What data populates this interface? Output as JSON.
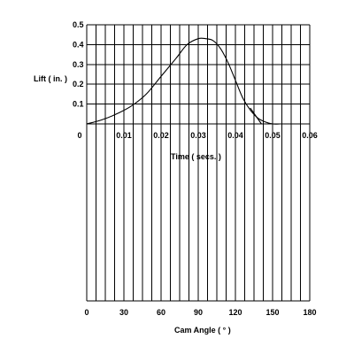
{
  "chart_data": {
    "type": "line",
    "title": "",
    "ylabel": "Lift  ( in. )",
    "xlabel": "Time   ( secs. )",
    "x2label": "Cam Angle ( ° )",
    "ylim": [
      0,
      0.5
    ],
    "xlim": [
      0,
      0.06
    ],
    "x2lim": [
      0,
      180
    ],
    "y_ticks": [
      "0.5",
      "0.4",
      "0.3",
      "0.2",
      "0.1"
    ],
    "x_ticks": [
      "0",
      "0.01",
      "0.02",
      "0.03",
      "0.04",
      "0.05",
      "0.06"
    ],
    "x2_ticks": [
      "0",
      "30",
      "60",
      "90",
      "120",
      "150",
      "180"
    ],
    "grid": true,
    "series": [
      {
        "x": [
          0,
          0.004,
          0.008,
          0.012,
          0.016,
          0.02,
          0.024,
          0.027,
          0.03,
          0.032,
          0.034,
          0.036,
          0.038,
          0.04,
          0.042,
          0.044,
          0.046,
          0.048,
          0.05,
          0.052
        ],
        "y": [
          0,
          0.02,
          0.05,
          0.09,
          0.15,
          0.24,
          0.33,
          0.4,
          0.43,
          0.43,
          0.42,
          0.38,
          0.31,
          0.22,
          0.13,
          0.07,
          0.03,
          0.01,
          0,
          0
        ]
      },
      {
        "x": [
          0.044,
          0.047
        ],
        "y": [
          0.08,
          0
        ]
      }
    ]
  }
}
